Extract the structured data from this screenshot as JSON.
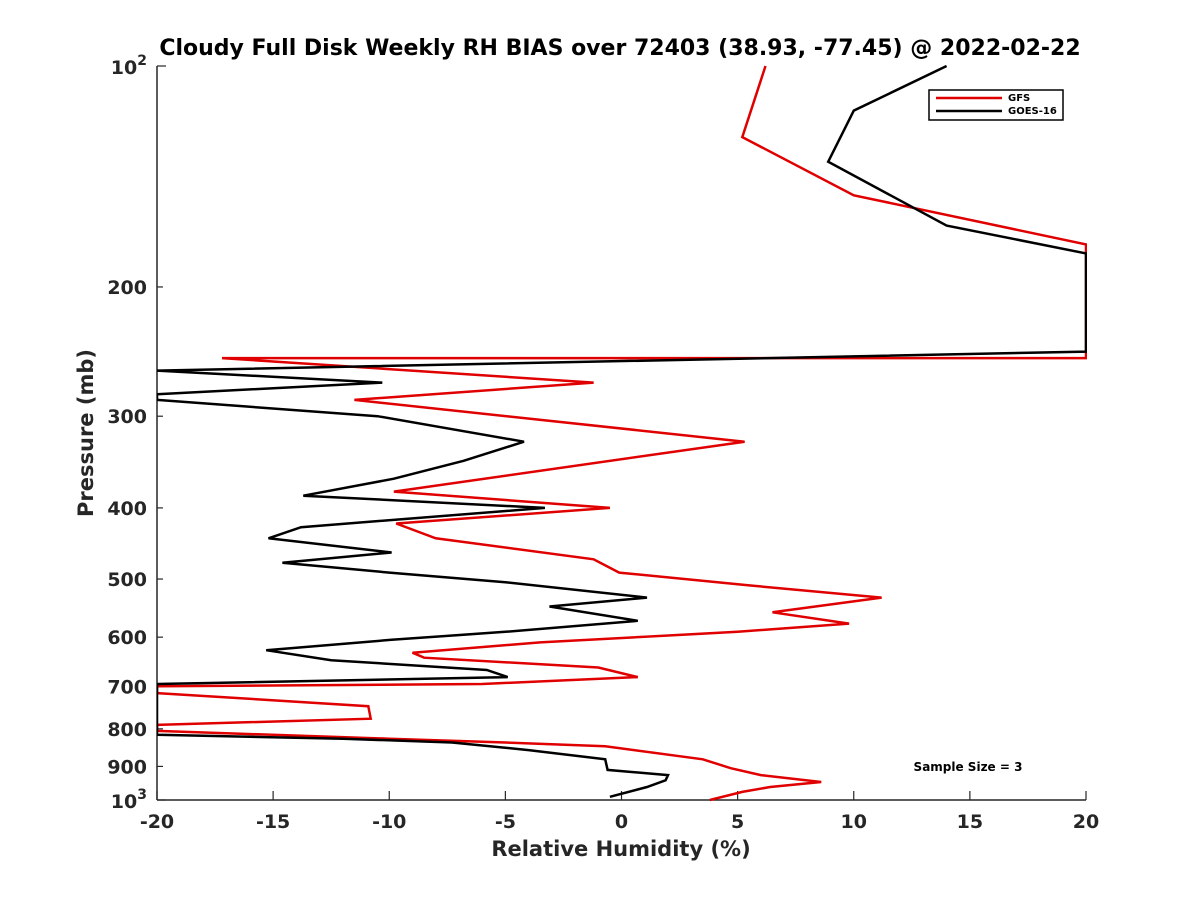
{
  "chart_data": {
    "type": "line",
    "title": "Cloudy Full Disk Weekly RH BIAS over 72403 (38.93, -77.45) @ 2022-02-22",
    "xlabel": "Relative Humidity (%)",
    "ylabel": "Pressure (mb)",
    "xlim": [
      -20,
      20
    ],
    "ylim": [
      100,
      1000
    ],
    "yscale": "log",
    "y_reversed": true,
    "grid": false,
    "legend_position": "top-right",
    "x_ticks": [
      "-20",
      "-15",
      "-10",
      "-5",
      "0",
      "5",
      "10",
      "15",
      "20"
    ],
    "x_tick_values": [
      -20,
      -15,
      -10,
      -5,
      0,
      5,
      10,
      15,
      20
    ],
    "y_ticks": [
      {
        "value": 100,
        "base": "10",
        "exp": "2"
      },
      {
        "value": 200,
        "label": "200"
      },
      {
        "value": 300,
        "label": "300"
      },
      {
        "value": 400,
        "label": "400"
      },
      {
        "value": 500,
        "label": "500"
      },
      {
        "value": 600,
        "label": "600"
      },
      {
        "value": 700,
        "label": "700"
      },
      {
        "value": 800,
        "label": "800"
      },
      {
        "value": 900,
        "label": "900"
      },
      {
        "value": 1000,
        "base": "10",
        "exp": "3"
      }
    ],
    "series": [
      {
        "name": "GFS",
        "color": "#e00000",
        "points": [
          [
            6.2,
            100
          ],
          [
            5.2,
            125
          ],
          [
            10,
            150
          ],
          [
            20,
            175
          ],
          [
            20,
            250
          ],
          [
            -17.2,
            250
          ],
          [
            -1.2,
            270
          ],
          [
            -11.5,
            285
          ],
          [
            5.3,
            325
          ],
          [
            -9.8,
            380
          ],
          [
            -0.5,
            400
          ],
          [
            -9.7,
            420
          ],
          [
            -8,
            440
          ],
          [
            -1.2,
            470
          ],
          [
            -0.1,
            490
          ],
          [
            5.5,
            510
          ],
          [
            11.2,
            530
          ],
          [
            6.5,
            555
          ],
          [
            9.8,
            575
          ],
          [
            5.0,
            590
          ],
          [
            -3.5,
            610
          ],
          [
            -9.0,
            630
          ],
          [
            -8.5,
            640
          ],
          [
            -1.0,
            660
          ],
          [
            0.7,
            680
          ],
          [
            -6,
            695
          ],
          [
            -20,
            700
          ],
          [
            -20,
            715
          ],
          [
            -10.9,
            745
          ],
          [
            -10.8,
            775
          ],
          [
            -20,
            790
          ],
          [
            -20,
            805
          ],
          [
            -10,
            825
          ],
          [
            -5,
            835
          ],
          [
            -0.7,
            845
          ],
          [
            3.5,
            880
          ],
          [
            4.7,
            905
          ],
          [
            6.0,
            925
          ],
          [
            8.6,
            945
          ],
          [
            6.4,
            960
          ],
          [
            5.2,
            975
          ],
          [
            3.8,
            1000
          ]
        ]
      },
      {
        "name": "GOES-16",
        "color": "#000000",
        "points": [
          [
            14,
            100
          ],
          [
            10,
            115
          ],
          [
            8.9,
            135
          ],
          [
            14,
            165
          ],
          [
            20,
            180
          ],
          [
            20,
            245
          ],
          [
            -20,
            260
          ],
          [
            -10.3,
            270
          ],
          [
            -20,
            280
          ],
          [
            -20,
            285
          ],
          [
            -10.5,
            300
          ],
          [
            -4.2,
            325
          ],
          [
            -6.8,
            345
          ],
          [
            -9.8,
            365
          ],
          [
            -13.7,
            385
          ],
          [
            -3.3,
            400
          ],
          [
            -13.8,
            425
          ],
          [
            -15.2,
            440
          ],
          [
            -9.9,
            460
          ],
          [
            -14.6,
            475
          ],
          [
            -10.0,
            490
          ],
          [
            -5.0,
            505
          ],
          [
            1.1,
            530
          ],
          [
            -3.1,
            545
          ],
          [
            0.7,
            570
          ],
          [
            -5,
            590
          ],
          [
            -9.9,
            605
          ],
          [
            -15.3,
            625
          ],
          [
            -12.5,
            645
          ],
          [
            -5.8,
            665
          ],
          [
            -4.9,
            680
          ],
          [
            -20,
            695
          ],
          [
            -20,
            815
          ],
          [
            -12,
            825
          ],
          [
            -7.3,
            835
          ],
          [
            -4,
            855
          ],
          [
            -0.7,
            880
          ],
          [
            -0.6,
            910
          ],
          [
            2.0,
            925
          ],
          [
            1.9,
            940
          ],
          [
            1.1,
            960
          ],
          [
            -0.5,
            990
          ]
        ]
      }
    ],
    "annotation": "Sample Size = 3"
  }
}
